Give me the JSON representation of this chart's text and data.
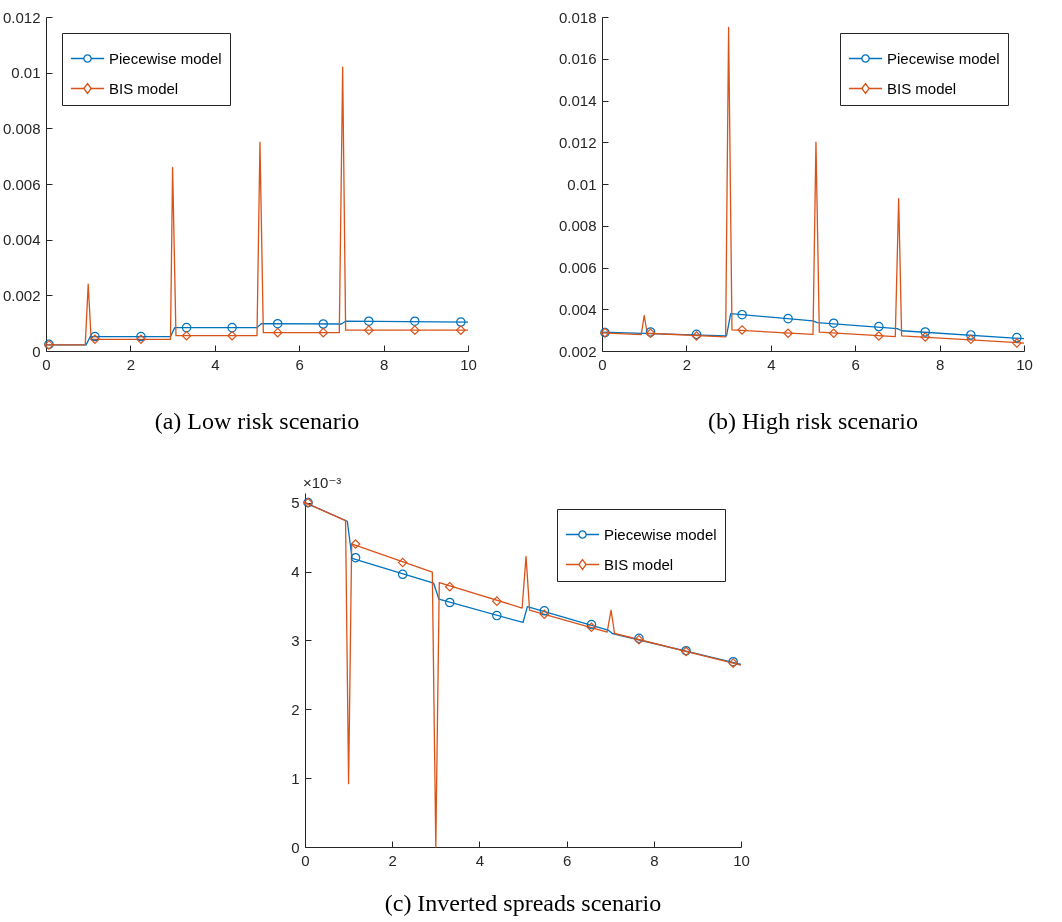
{
  "chart_data": [
    {
      "type": "line",
      "title": "(a) Low risk scenario",
      "xlim": [
        0,
        10
      ],
      "xticks": [
        0,
        2,
        4,
        6,
        8,
        10
      ],
      "ylim": [
        0,
        0.012
      ],
      "yticks": [
        0,
        0.002,
        0.004,
        0.006,
        0.008,
        0.01,
        0.012
      ],
      "grid": false,
      "legend": "top left",
      "series": [
        {
          "name": "Piecewise model",
          "color": "#0072bd",
          "x": [
            0,
            0.95,
            1.05,
            2.95,
            3.05,
            5.0,
            5.1,
            7.0,
            7.1,
            10
          ],
          "values": [
            0.00022,
            0.00022,
            0.00052,
            0.00052,
            0.00084,
            0.00084,
            0.00098,
            0.00097,
            0.00107,
            0.00104
          ]
        },
        {
          "name": "BIS model",
          "color": "#d95319",
          "x": [
            0,
            0.93,
            1.0,
            1.07,
            2.95,
            3.0,
            3.08,
            5.0,
            5.07,
            5.15,
            6.95,
            7.03,
            7.1,
            10
          ],
          "values": [
            0.00022,
            0.00022,
            0.0024,
            0.00042,
            0.00042,
            0.0066,
            0.00055,
            0.00055,
            0.0075,
            0.00066,
            0.00066,
            0.0102,
            0.00075,
            0.00075
          ]
        },
        {
          "type": "scatter",
          "color": "#0072bd",
          "marker": "circle",
          "x": [
            0.07,
            1.16,
            2.25,
            3.33,
            4.41,
            5.49,
            6.57,
            7.65,
            8.74,
            9.83
          ],
          "values": [
            0.00024,
            0.00052,
            0.00052,
            0.00084,
            0.00084,
            0.00098,
            0.00097,
            0.00107,
            0.00107,
            0.00104
          ]
        },
        {
          "type": "scatter",
          "color": "#d95319",
          "marker": "diamond",
          "x": [
            0.07,
            1.16,
            2.25,
            3.33,
            4.41,
            5.49,
            6.57,
            7.65,
            8.74,
            9.83
          ],
          "values": [
            0.00022,
            0.00042,
            0.00042,
            0.00055,
            0.00055,
            0.00066,
            0.00066,
            0.00075,
            0.00075,
            0.00075
          ]
        }
      ]
    },
    {
      "type": "line",
      "title": "(b) High risk scenario",
      "xlim": [
        0,
        10
      ],
      "xticks": [
        0,
        2,
        4,
        6,
        8,
        10
      ],
      "ylim": [
        0.002,
        0.018
      ],
      "yticks": [
        0.002,
        0.004,
        0.006,
        0.008,
        0.01,
        0.012,
        0.014,
        0.016,
        0.018
      ],
      "grid": false,
      "legend": "top right",
      "series": [
        {
          "name": "Piecewise model",
          "color": "#0072bd",
          "x": [
            0,
            2.95,
            3.05,
            5.0,
            5.1,
            7.0,
            7.1,
            10
          ],
          "values": [
            0.0029,
            0.00272,
            0.00379,
            0.00344,
            0.00336,
            0.00307,
            0.00297,
            0.00259
          ]
        },
        {
          "name": "BIS model",
          "color": "#d95319",
          "x": [
            0,
            0.93,
            1.0,
            1.07,
            2.93,
            3.0,
            3.08,
            5.0,
            5.07,
            5.15,
            6.95,
            7.03,
            7.1,
            10
          ],
          "values": [
            0.00287,
            0.00278,
            0.0037,
            0.00285,
            0.00268,
            0.0175,
            0.00301,
            0.0028,
            0.012,
            0.0029,
            0.00269,
            0.0093,
            0.00272,
            0.00238
          ]
        },
        {
          "type": "scatter",
          "color": "#0072bd",
          "marker": "circle",
          "x": [
            0.07,
            1.15,
            2.24,
            3.32,
            4.41,
            5.49,
            6.56,
            7.66,
            8.74,
            9.83
          ],
          "values": [
            0.00288,
            0.00291,
            0.0028,
            0.00374,
            0.00355,
            0.00333,
            0.00317,
            0.00291,
            0.00277,
            0.00264
          ]
        },
        {
          "type": "scatter",
          "color": "#d95319",
          "marker": "diamond",
          "x": [
            0.07,
            1.15,
            2.24,
            3.32,
            4.41,
            5.49,
            6.56,
            7.66,
            8.74,
            9.83
          ],
          "values": [
            0.00288,
            0.00285,
            0.00272,
            0.00301,
            0.00285,
            0.00285,
            0.00272,
            0.00267,
            0.00256,
            0.00238
          ]
        }
      ]
    },
    {
      "type": "line",
      "title": "(c) Inverted spreads scenario",
      "annotations": [
        "×10⁻³"
      ],
      "xlim": [
        0,
        10
      ],
      "xticks": [
        0,
        2,
        4,
        6,
        8,
        10
      ],
      "ylim": [
        0,
        5.14
      ],
      "yticks": [
        0,
        1,
        2,
        3,
        4,
        5
      ],
      "grid": false,
      "legend": "top right",
      "series": [
        {
          "name": "Piecewise model",
          "color": "#0072bd",
          "x": [
            0,
            0.97,
            1.08,
            2.95,
            3.07,
            5.0,
            5.1,
            6.95,
            7.05,
            10
          ],
          "values": [
            5.0,
            4.73,
            4.19,
            3.83,
            3.6,
            3.26,
            3.49,
            3.15,
            3.1,
            2.65
          ]
        },
        {
          "name": "BIS model",
          "color": "#d95319",
          "x": [
            0,
            0.93,
            1.0,
            1.07,
            2.92,
            3.0,
            3.08,
            4.98,
            5.07,
            5.15,
            6.93,
            7.02,
            7.1,
            10
          ],
          "values": [
            5.0,
            4.74,
            0.92,
            4.4,
            3.99,
            0,
            3.84,
            3.47,
            4.22,
            3.44,
            3.12,
            3.44,
            3.1,
            2.64
          ]
        },
        {
          "type": "scatter",
          "color": "#0072bd",
          "marker": "circle",
          "x": [
            0.07,
            1.16,
            2.24,
            3.32,
            4.4,
            5.49,
            6.57,
            7.66,
            8.74,
            9.82
          ],
          "values": [
            5.0,
            4.2,
            3.96,
            3.55,
            3.36,
            3.43,
            3.23,
            3.03,
            2.85,
            2.69
          ]
        },
        {
          "type": "scatter",
          "color": "#d95319",
          "marker": "diamond",
          "x": [
            0.07,
            1.16,
            2.24,
            3.32,
            4.4,
            5.49,
            6.57,
            7.66,
            8.74,
            9.82
          ],
          "values": [
            5.0,
            4.4,
            4.13,
            3.78,
            3.57,
            3.38,
            3.19,
            3.01,
            2.84,
            2.67
          ]
        }
      ]
    }
  ]
}
